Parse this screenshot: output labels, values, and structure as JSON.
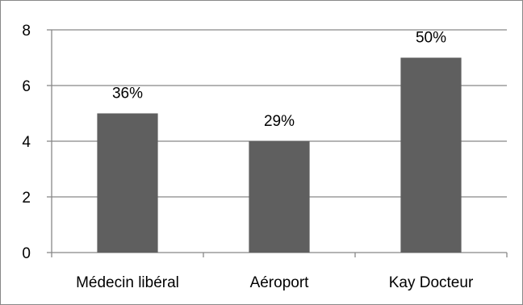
{
  "chart_data": {
    "type": "bar",
    "categories": [
      "Médecin libéral",
      "Aéroport",
      "Kay Docteur"
    ],
    "values": [
      5,
      4,
      7
    ],
    "data_labels": [
      "36%",
      "29%",
      "50%"
    ],
    "ylim": [
      0,
      8
    ],
    "yticks": [
      0,
      2,
      4,
      6,
      8
    ],
    "ytick_labels": [
      "0",
      "2",
      "4",
      "6",
      "8"
    ],
    "grid": true,
    "legend": "none",
    "colors": {
      "bar": "#5f5f5f",
      "gridline": "#888888",
      "axis": "#888888"
    }
  }
}
